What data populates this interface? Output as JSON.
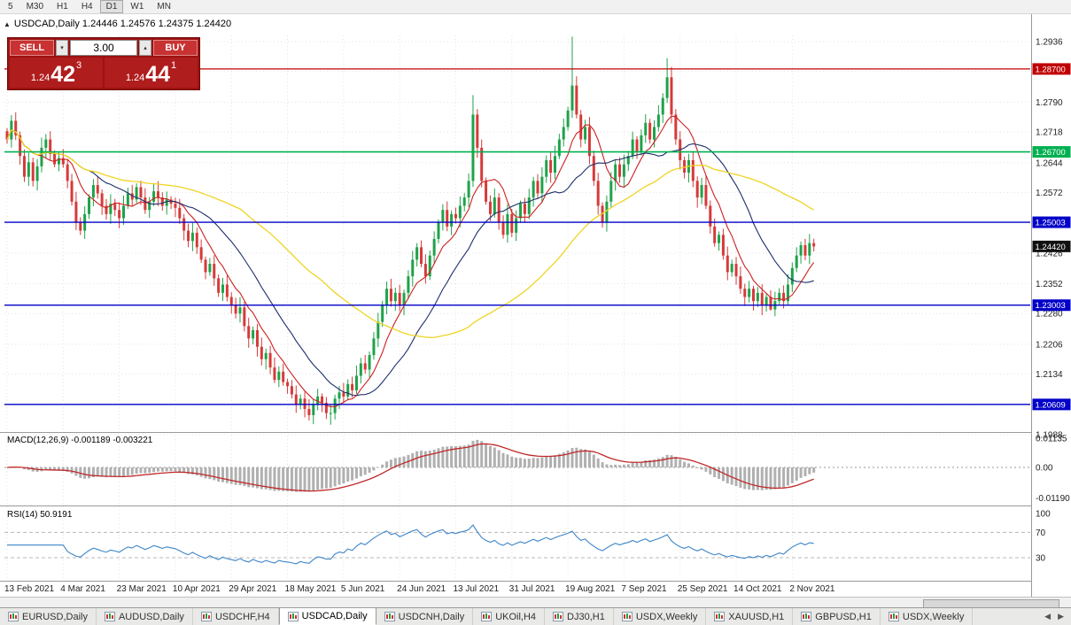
{
  "toolbar": {
    "periods": [
      "5",
      "M30",
      "H1",
      "H4",
      "D1",
      "W1",
      "MN"
    ],
    "active": "D1"
  },
  "quote_header": {
    "marker": "▲",
    "text": "USDCAD,Daily 1.24446 1.24576 1.24375 1.24420"
  },
  "trade_panel": {
    "sell_label": "SELL",
    "buy_label": "BUY",
    "volume": "3.00",
    "spin_down": "▾",
    "spin_up": "▴",
    "bid_prefix": "1.24",
    "bid_main": "42",
    "bid_pip": "3",
    "ask_prefix": "1.24",
    "ask_main": "44",
    "ask_pip": "1"
  },
  "tab_bar": {
    "scroll_left": "◀",
    "scroll_right": "▶",
    "active_index": 3,
    "items": [
      {
        "label": "EURUSD,Daily"
      },
      {
        "label": "AUDUSD,Daily"
      },
      {
        "label": "USDCHF,H4"
      },
      {
        "label": "USDCAD,Daily"
      },
      {
        "label": "USDCNH,Daily"
      },
      {
        "label": "UKOil,H4"
      },
      {
        "label": "DJ30,H1"
      },
      {
        "label": "USDX,Weekly"
      },
      {
        "label": "XAUUSD,H1"
      },
      {
        "label": "GBPUSD,H1"
      },
      {
        "label": "USDX,Weekly"
      }
    ]
  },
  "chart_data": {
    "type": "candlestick",
    "symbol": "USDCAD",
    "timeframe": "Daily",
    "current": {
      "open": 1.24446,
      "high": 1.24576,
      "low": 1.24375,
      "close": 1.2442
    },
    "price_ticks": [
      "1.2936",
      "1.2864",
      "1.2790",
      "1.2718",
      "1.2644",
      "1.2572",
      "1.2500",
      "1.2426",
      "1.2352",
      "1.2280",
      "1.2206",
      "1.2134",
      "1.2060",
      "1.1988"
    ],
    "dates": [
      "13 Feb 2021",
      "4 Mar 2021",
      "23 Mar 2021",
      "10 Apr 2021",
      "29 Apr 2021",
      "18 May 2021",
      "5 Jun 2021",
      "24 Jun 2021",
      "13 Jul 2021",
      "31 Jul 2021",
      "19 Aug 2021",
      "7 Sep 2021",
      "25 Sep 2021",
      "14 Oct 2021",
      "2 Nov 2021"
    ],
    "levels": [
      {
        "price": 1.287,
        "label": "1.28700",
        "color": "#c00000",
        "width": 1.3
      },
      {
        "price": 1.267,
        "label": "1.26700",
        "color": "#00b050",
        "width": 1.6
      },
      {
        "price": 1.25003,
        "label": "1.25003",
        "color": "#0000c8",
        "width": 1.4
      },
      {
        "price": 1.23003,
        "label": "1.23003",
        "color": "#0000c8",
        "width": 1.4
      },
      {
        "price": 1.20609,
        "label": "1.20609",
        "color": "#0000c8",
        "width": 1.4
      }
    ],
    "current_price_badge": {
      "price": 1.2442,
      "label": "1.24420",
      "color": "#111111"
    },
    "candles": {
      "first_open": 1.272,
      "wick": 0.0018,
      "up_color": "#1fa24a",
      "down_color": "#d63a3a",
      "closes": [
        1.27,
        1.2745,
        1.271,
        1.266,
        1.261,
        1.2645,
        1.26,
        1.2635,
        1.268,
        1.27,
        1.2665,
        1.264,
        1.2655,
        1.264,
        1.26,
        1.255,
        1.25,
        1.248,
        1.252,
        1.256,
        1.259,
        1.257,
        1.254,
        1.252,
        1.2545,
        1.253,
        1.251,
        1.254,
        1.257,
        1.2555,
        1.2585,
        1.256,
        1.253,
        1.255,
        1.2575,
        1.256,
        1.254,
        1.2555,
        1.2545,
        1.2535,
        1.251,
        1.248,
        1.2455,
        1.2475,
        1.244,
        1.241,
        1.238,
        1.24,
        1.2365,
        1.233,
        1.235,
        1.232,
        1.23,
        1.228,
        1.2295,
        1.225,
        1.222,
        1.224,
        1.22,
        1.217,
        1.2185,
        1.215,
        1.212,
        1.214,
        1.2115,
        1.2105,
        1.2085,
        1.206,
        1.2075,
        1.205,
        1.2035,
        1.206,
        1.208,
        1.2065,
        1.204,
        1.204,
        1.2075,
        1.209,
        1.208,
        1.211,
        1.2095,
        1.213,
        1.216,
        1.2145,
        1.218,
        1.222,
        1.226,
        1.23,
        1.234,
        1.231,
        1.233,
        1.23,
        1.233,
        1.237,
        1.241,
        1.244,
        1.24,
        1.237,
        1.242,
        1.246,
        1.25,
        1.253,
        1.249,
        1.252,
        1.251,
        1.254,
        1.256,
        1.26,
        1.276,
        1.268,
        1.26,
        1.255,
        1.252,
        1.256,
        1.25,
        1.247,
        1.252,
        1.2475,
        1.251,
        1.2545,
        1.252,
        1.256,
        1.26,
        1.257,
        1.261,
        1.265,
        1.262,
        1.266,
        1.27,
        1.273,
        1.277,
        1.283,
        1.276,
        1.27,
        1.273,
        1.266,
        1.26,
        1.254,
        1.25,
        1.255,
        1.26,
        1.264,
        1.261,
        1.264,
        1.266,
        1.27,
        1.267,
        1.271,
        1.274,
        1.27,
        1.273,
        1.276,
        1.28,
        1.285,
        1.276,
        1.27,
        1.265,
        1.262,
        1.265,
        1.26,
        1.256,
        1.259,
        1.254,
        1.249,
        1.245,
        1.247,
        1.242,
        1.238,
        1.24,
        1.237,
        1.234,
        1.232,
        1.234,
        1.231,
        1.233,
        1.23,
        1.232,
        1.229,
        1.231,
        1.233,
        1.231,
        1.235,
        1.239,
        1.242,
        1.2445,
        1.242,
        1.245,
        1.2442
      ],
      "spikes": {
        "70": {
          "low": 1.2022
        },
        "75": {
          "low": 1.2012
        },
        "108": {
          "high": 1.2807
        },
        "131": {
          "high": 1.2948
        },
        "153": {
          "high": 1.2896
        },
        "177": {
          "low": 1.2287
        }
      }
    },
    "ma": [
      {
        "period": 8,
        "color": "#cc2020",
        "width": 1.1
      },
      {
        "period": 20,
        "color": "#1c2f6b",
        "width": 1.1
      },
      {
        "period": 55,
        "color": "#efd423",
        "width": 1.3
      }
    ],
    "macd": {
      "label": "MACD(12,26,9) -0.001189 -0.003221",
      "params": [
        12,
        26,
        9
      ],
      "value": -0.001189,
      "signal": -0.003221,
      "hist_color": "#b0b0b0",
      "signal_color": "#c02828",
      "axis": [
        {
          "label": "0.01135",
          "value": 0.01135
        },
        {
          "label": "0.00",
          "value": 0
        },
        {
          "label": "-0.01190",
          "value": -0.0119
        }
      ]
    },
    "rsi": {
      "label": "RSI(14) 50.9191",
      "period": 14,
      "value": 50.9191,
      "color": "#3d85c8",
      "axis": [
        {
          "label": "100",
          "value": 100
        },
        {
          "label": "70",
          "value": 70
        },
        {
          "label": "30",
          "value": 30
        }
      ],
      "level_lines": [
        70,
        30
      ]
    }
  }
}
